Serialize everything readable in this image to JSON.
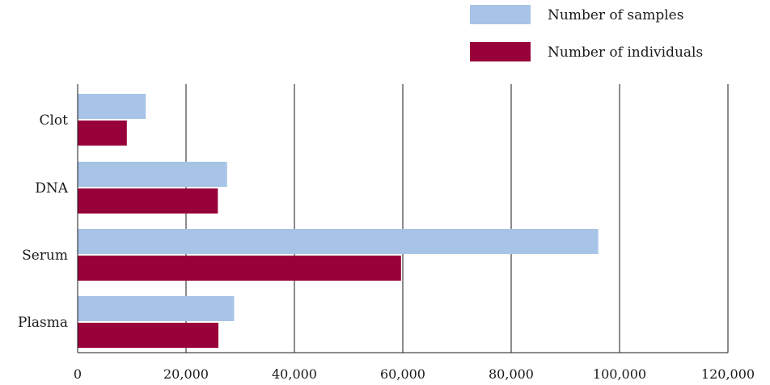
{
  "chart_data": {
    "type": "bar",
    "orientation": "horizontal",
    "categories": [
      "Clot",
      "DNA",
      "Serum",
      "Plasma"
    ],
    "series": [
      {
        "name": "Number of samples",
        "color": "#a7c4e6",
        "values": [
          12500,
          27500,
          96000,
          28800
        ]
      },
      {
        "name": "Number of individuals",
        "color": "#98023a",
        "values": [
          9000,
          25800,
          59600,
          25900
        ]
      }
    ],
    "xlim": [
      0,
      120000
    ],
    "xticks": [
      0,
      20000,
      40000,
      60000,
      80000,
      100000,
      120000
    ],
    "xtick_labels": [
      "0",
      "20,000",
      "40,000",
      "60,000",
      "80,000",
      "100,000",
      "120,000"
    ],
    "grid": "vertical",
    "legend_position": "top-right"
  }
}
